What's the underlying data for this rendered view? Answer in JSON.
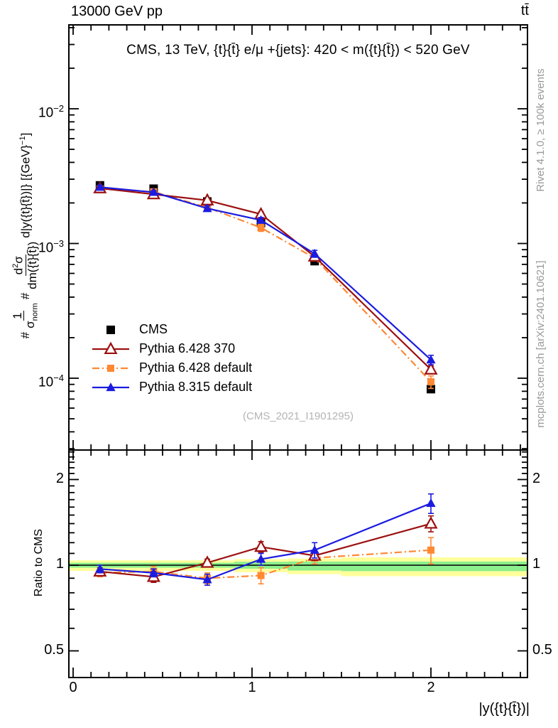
{
  "header": {
    "left": "13000 GeV pp",
    "right": "tt̄"
  },
  "plot_title": "CMS, 13 TeV, {t}{t̄} e/μ +{jets}: 420 < m({t}{t̄}) < 520 GeV",
  "ref_label": "(CMS_2021_I1901295)",
  "watermarks": {
    "top": "Rivet 4.1.0, ≥ 100k events",
    "bottom": "mcplots.cern.ch [arXiv:2401.10621]"
  },
  "xaxis": {
    "label": "|y({t}{t̄})|",
    "tick_labels": [
      {
        "text": "0",
        "value": 0
      },
      {
        "text": "1",
        "value": 1
      },
      {
        "text": "2",
        "value": 2
      }
    ],
    "minor_step": 0.1,
    "range": [
      -0.024,
      2.54
    ]
  },
  "yaxis_main": {
    "h1": "#",
    "f1n": "1",
    "f1d_base": "σ",
    "f1d_sub": "norm",
    "h2": "#",
    "f2n_a": "d",
    "f2n_sup": "2",
    "f2n_b": "σ",
    "f2d": "dm({t}{t̄})",
    "tail": " d|y({t}{t̄})|}  [{GeV}",
    "tail_sup": "−1",
    "tail_end": "]",
    "tick_labels": [
      {
        "base": "10",
        "exp": "−2",
        "value": 0.01
      },
      {
        "base": "10",
        "exp": "−3",
        "value": 0.001
      },
      {
        "base": "10",
        "exp": "−4",
        "value": 0.0001
      }
    ],
    "range": [
      2.93e-05,
      0.0427
    ],
    "log": true
  },
  "yaxis_ratio": {
    "label": "Ratio to CMS",
    "tick_labels": [
      {
        "text": "2",
        "value": 2
      },
      {
        "text": "1",
        "value": 1
      },
      {
        "text": "0.5",
        "value": 0.5
      }
    ],
    "range": [
      0.403,
      2.54
    ],
    "log": true
  },
  "colors": {
    "cms": "#000000",
    "pythia6_370": "#9c1010",
    "pythia6_default": "#ff8833",
    "pythia8_default": "#1b1be0",
    "band_yellow": "#ffff9c",
    "band_green": "#8cee8c",
    "watermark_gray": "#999999"
  },
  "chart_data": {
    "type": "line",
    "title": "CMS, 13 TeV, {t}{t̄} e/μ +{jets}: 420 < m({t}{t̄}) < 520 GeV",
    "xlabel": "|y({t}{t̄})|",
    "ylabel": "#1/σnorm # d²σ/dm({t}{t̄}) d|y({t}{t̄})|} [{GeV}⁻¹]",
    "x": [
      0.15,
      0.45,
      0.75,
      1.05,
      1.35,
      2.0
    ],
    "bin_edges": [
      0,
      0.3,
      0.6,
      0.9,
      1.2,
      1.5,
      2.5
    ],
    "xlim": [
      -0.024,
      2.54
    ],
    "main_ylim": [
      2.93e-05,
      0.0427
    ],
    "grid": false,
    "legend_position": "middle-left",
    "series": [
      {
        "id": "cms",
        "label": "CMS",
        "color": "#000000",
        "marker": "square",
        "marker_size": 12,
        "line": "none",
        "values": [
          0.0027,
          0.00255,
          0.00205,
          0.00142,
          0.00074,
          8.3e-05
        ],
        "yerr": [
          5e-05,
          5e-05,
          4e-05,
          3e-05,
          2e-05,
          3e-06
        ]
      },
      {
        "id": "py6-370",
        "label": "Pythia 6.428 370",
        "color": "#9c1010",
        "marker": "triangle-open",
        "marker_size": 14,
        "line": "solid",
        "values": [
          0.00257,
          0.00232,
          0.00209,
          0.00165,
          0.0008,
          0.000116
        ],
        "yerr": [
          8e-05,
          9e-05,
          6e-05,
          7e-05,
          3e-05,
          7e-06
        ]
      },
      {
        "id": "py6-def",
        "label": "Pythia 6.428 default",
        "color": "#ff8833",
        "marker": "square",
        "marker_size": 10,
        "line": "dashdot",
        "values": [
          0.00254,
          0.00242,
          0.00185,
          0.00131,
          0.00078,
          9.4e-05
        ],
        "yerr": [
          8e-05,
          9e-05,
          8e-05,
          8e-05,
          3.5e-05,
          1e-05
        ]
      },
      {
        "id": "py8-def",
        "label": "Pythia 8.315 default",
        "color": "#1b1be0",
        "marker": "triangle",
        "marker_size": 12,
        "line": "solid",
        "values": [
          0.00262,
          0.0024,
          0.00182,
          0.00149,
          0.00084,
          0.000137
        ],
        "yerr": [
          8e-05,
          7e-05,
          8e-05,
          7e-05,
          5e-05,
          1.1e-05
        ]
      }
    ],
    "ratio": {
      "ylabel": "Ratio to CMS",
      "ylim": [
        0.403,
        2.54
      ],
      "series": [
        {
          "id": "py6-370",
          "ratios": [
            0.95,
            0.91,
            1.02,
            1.16,
            1.08,
            1.4
          ],
          "err": [
            0.03,
            0.04,
            0.03,
            0.05,
            0.04,
            0.09
          ]
        },
        {
          "id": "py6-def",
          "ratios": [
            0.94,
            0.95,
            0.9,
            0.92,
            1.06,
            1.13
          ],
          "err": [
            0.03,
            0.04,
            0.04,
            0.06,
            0.05,
            0.12
          ]
        },
        {
          "id": "py8-def",
          "ratios": [
            0.97,
            0.94,
            0.89,
            1.05,
            1.13,
            1.65
          ],
          "err": [
            0.03,
            0.03,
            0.04,
            0.05,
            0.07,
            0.13
          ]
        }
      ],
      "band_segments": [
        {
          "x0": 0.0,
          "x1": 0.9,
          "yellow": [
            0.955,
            1.04
          ],
          "green": [
            0.98,
            1.02
          ]
        },
        {
          "x0": 0.9,
          "x1": 1.2,
          "yellow": [
            0.945,
            1.05
          ],
          "green": [
            0.972,
            1.028
          ]
        },
        {
          "x0": 1.2,
          "x1": 1.5,
          "yellow": [
            0.93,
            1.055
          ],
          "green": [
            0.958,
            1.03
          ]
        },
        {
          "x0": 1.5,
          "x1": 2.54,
          "yellow": [
            0.915,
            1.065
          ],
          "green": [
            0.953,
            1.03
          ]
        }
      ]
    }
  },
  "legend": {
    "items": [
      {
        "label": "CMS"
      },
      {
        "label": "Pythia 6.428 370"
      },
      {
        "label": "Pythia 6.428 default"
      },
      {
        "label": "Pythia 8.315 default"
      }
    ]
  }
}
